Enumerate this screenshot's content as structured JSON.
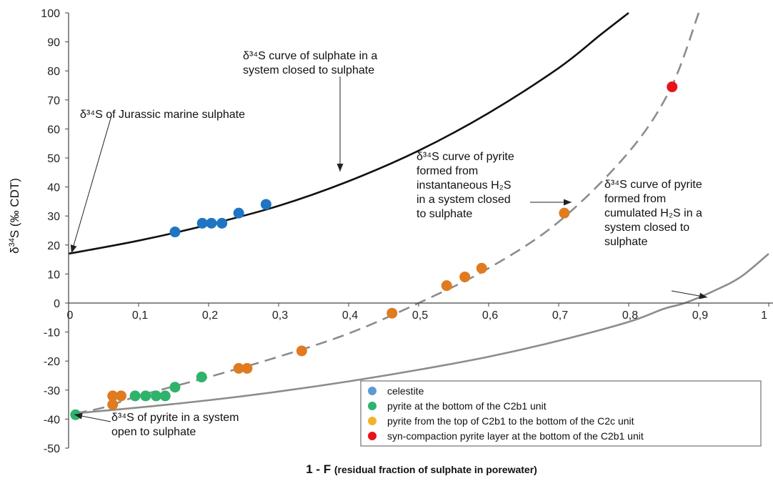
{
  "chart_data": {
    "type": "scatter",
    "xlabel": "1 - F",
    "xlabel_note": "(residual fraction of sulphate in porewater)",
    "ylabel": "δ34S (‰ CDT)",
    "xlim": [
      0,
      1
    ],
    "ylim": [
      -50,
      100
    ],
    "x_ticks": [
      "0",
      "0,1",
      "0,2",
      "0,3",
      "0,4",
      "0,5",
      "0,6",
      "0,7",
      "0,8",
      "0,9",
      "1"
    ],
    "y_ticks": [
      "-50",
      "-40",
      "-30",
      "-20",
      "-10",
      "0",
      "10",
      "20",
      "30",
      "40",
      "50",
      "60",
      "70",
      "80",
      "90",
      "100"
    ],
    "grid": false,
    "legend_position": "bottom-right",
    "series": [
      {
        "name": "celestite",
        "color": "#5b9bd5",
        "points": [
          [
            0.152,
            24.5
          ],
          [
            0.191,
            27.5
          ],
          [
            0.204,
            27.5
          ],
          [
            0.219,
            27.5
          ],
          [
            0.243,
            31
          ],
          [
            0.282,
            34
          ]
        ]
      },
      {
        "name": "pyrite  at the bottom of the C2b1 unit",
        "color": "#2fb36b",
        "points": [
          [
            0.01,
            -38.5
          ],
          [
            0.095,
            -32
          ],
          [
            0.11,
            -32
          ],
          [
            0.125,
            -32
          ],
          [
            0.138,
            -32
          ],
          [
            0.152,
            -29
          ],
          [
            0.19,
            -25.5
          ]
        ]
      },
      {
        "name": "pyrite from the top of C2b1 to the bottom of the C2c unit",
        "color": "#f0b428",
        "points": [
          [
            0.063,
            -35
          ],
          [
            0.063,
            -32
          ],
          [
            0.075,
            -32
          ],
          [
            0.243,
            -22.5
          ],
          [
            0.255,
            -22.5
          ],
          [
            0.333,
            -16.5
          ],
          [
            0.462,
            -3.5
          ],
          [
            0.54,
            6
          ],
          [
            0.566,
            9
          ],
          [
            0.59,
            12
          ],
          [
            0.708,
            31
          ]
        ]
      },
      {
        "name": "syn-compaction  pyrite layer at the bottom of the C2b1 unit",
        "color": "#e8141c",
        "points": [
          [
            0.862,
            74.5
          ]
        ]
      }
    ],
    "curves": [
      {
        "style": "solid-black",
        "points": [
          [
            0,
            17
          ],
          [
            0.1,
            21.5
          ],
          [
            0.2,
            27
          ],
          [
            0.3,
            33.5
          ],
          [
            0.4,
            42
          ],
          [
            0.5,
            52.5
          ],
          [
            0.6,
            65.5
          ],
          [
            0.7,
            81
          ],
          [
            0.76,
            92.5
          ],
          [
            0.8,
            100
          ]
        ]
      },
      {
        "style": "dashed-gray",
        "points": [
          [
            0.01,
            -38
          ],
          [
            0.05,
            -36
          ],
          [
            0.1,
            -32
          ],
          [
            0.2,
            -25.5
          ],
          [
            0.3,
            -18.5
          ],
          [
            0.4,
            -10.5
          ],
          [
            0.5,
            0
          ],
          [
            0.6,
            12
          ],
          [
            0.7,
            28
          ],
          [
            0.8,
            52
          ],
          [
            0.86,
            74
          ],
          [
            0.9,
            100
          ]
        ]
      },
      {
        "style": "solid-gray",
        "points": [
          [
            0.01,
            -38
          ],
          [
            0.1,
            -36
          ],
          [
            0.2,
            -33.5
          ],
          [
            0.3,
            -30.5
          ],
          [
            0.4,
            -27
          ],
          [
            0.5,
            -23
          ],
          [
            0.6,
            -18.5
          ],
          [
            0.7,
            -13
          ],
          [
            0.8,
            -6.5
          ],
          [
            0.85,
            -2
          ],
          [
            0.88,
            0
          ],
          [
            0.92,
            4
          ],
          [
            0.96,
            9
          ],
          [
            1.0,
            17
          ]
        ]
      }
    ],
    "annotations": [
      {
        "lines": [
          "δ³⁴S curve of sulphate in a",
          "system closed to sulphate"
        ]
      },
      {
        "lines": [
          "δ³⁴S of Jurassic marine sulphate"
        ]
      },
      {
        "lines": [
          "δ³⁴S curve of pyrite",
          "formed from",
          "instantaneous  H₂S",
          "in a system closed",
          "to sulphate"
        ]
      },
      {
        "lines": [
          "δ³⁴S curve of pyrite",
          "formed from",
          "cumulated  H₂S in a",
          "system closed to",
          "sulphate"
        ]
      },
      {
        "lines": [
          "δ³⁴S of pyrite in a system",
          "open to sulphate"
        ]
      }
    ]
  }
}
